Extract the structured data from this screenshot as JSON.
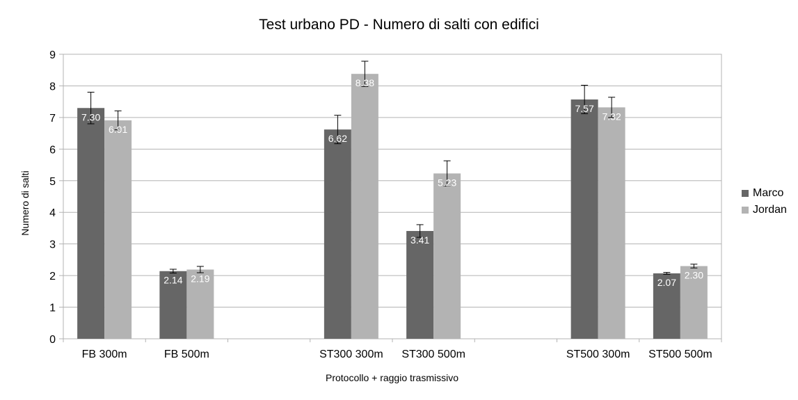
{
  "chart_data": {
    "type": "bar",
    "title": "Test urbano PD - Numero di salti con edifici",
    "xlabel": "Protocollo + raggio trasmissivo",
    "ylabel": "Numero di salti",
    "ylim": [
      0,
      9
    ],
    "yticks": [
      "0",
      "1",
      "2",
      "3",
      "4",
      "5",
      "6",
      "7",
      "8",
      "9"
    ],
    "grid": true,
    "legend_position": "right",
    "slots": [
      "FB 300m",
      "FB 500m",
      "",
      "ST300 300m",
      "ST300 500m",
      "",
      "ST500 300m",
      "ST500 500m"
    ],
    "categories": [
      "FB 300m",
      "FB 500m",
      "ST300 300m",
      "ST300 500m",
      "ST500 300m",
      "ST500 500m"
    ],
    "series": [
      {
        "name": "Marco",
        "color": "#666666",
        "values": [
          7.3,
          2.14,
          6.62,
          3.41,
          7.57,
          2.07
        ],
        "labels": [
          "7.30",
          "2.14",
          "6.62",
          "3.41",
          "7.57",
          "2.07"
        ],
        "error": [
          0.5,
          0.06,
          0.45,
          0.2,
          0.45,
          0.03
        ]
      },
      {
        "name": "Jordan",
        "color": "#b3b3b3",
        "values": [
          6.91,
          2.19,
          8.38,
          5.23,
          7.32,
          2.3
        ],
        "labels": [
          "6.91",
          "2.19",
          "8.38",
          "5.23",
          "7.32",
          "2.30"
        ],
        "error": [
          0.3,
          0.1,
          0.4,
          0.4,
          0.32,
          0.06
        ]
      }
    ]
  }
}
